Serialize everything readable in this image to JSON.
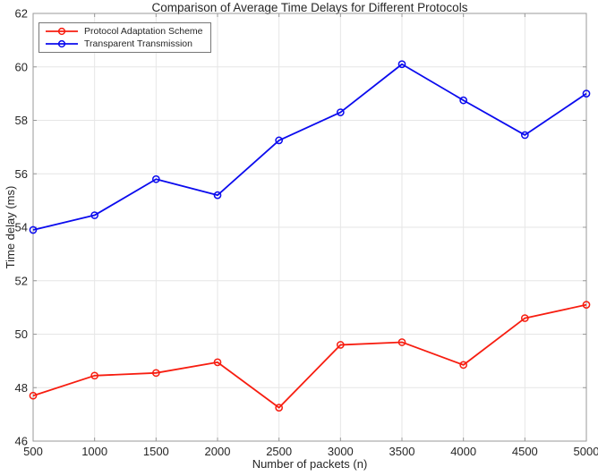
{
  "chart_data": {
    "type": "line",
    "title": "Comparison of Average Time Delays for Different Protocols",
    "xlabel": "Number of packets (n)",
    "ylabel": "Time delay (ms)",
    "x": [
      500,
      1000,
      1500,
      2000,
      2500,
      3000,
      3500,
      4000,
      4500,
      5000
    ],
    "series": [
      {
        "name": "Protocol Adaptation Scheme",
        "color": "#f71d10",
        "marker": "circle",
        "values": [
          47.7,
          48.45,
          48.55,
          48.95,
          47.25,
          49.6,
          49.7,
          48.85,
          50.6,
          51.1
        ]
      },
      {
        "name": "Transparent Transmission",
        "color": "#0b0bee",
        "marker": "circle",
        "values": [
          53.9,
          54.45,
          55.8,
          55.2,
          57.25,
          58.3,
          60.1,
          58.75,
          57.45,
          59.0
        ]
      }
    ],
    "xlim": [
      500,
      5000
    ],
    "ylim": [
      46,
      62
    ],
    "xtick_step": 500,
    "ytick_step": 2,
    "xticks": [
      500,
      1000,
      1500,
      2000,
      2500,
      3000,
      3500,
      4000,
      4500,
      5000
    ],
    "yticks": [
      46,
      48,
      50,
      52,
      54,
      56,
      58,
      60,
      62
    ],
    "grid": true,
    "legend_position": "top-left"
  },
  "style_colors": {
    "axis_box": "#999999",
    "grid": "#e6e6e6",
    "tick_text": "#262626"
  }
}
